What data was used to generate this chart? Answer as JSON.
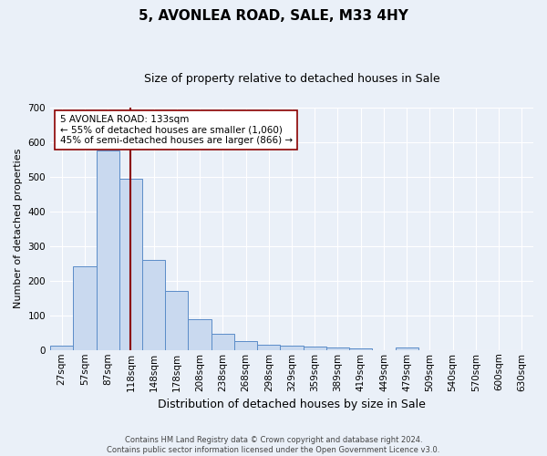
{
  "title": "5, AVONLEA ROAD, SALE, M33 4HY",
  "subtitle": "Size of property relative to detached houses in Sale",
  "xlabel": "Distribution of detached houses by size in Sale",
  "ylabel": "Number of detached properties",
  "bar_labels": [
    "27sqm",
    "57sqm",
    "87sqm",
    "118sqm",
    "148sqm",
    "178sqm",
    "208sqm",
    "238sqm",
    "268sqm",
    "298sqm",
    "329sqm",
    "359sqm",
    "389sqm",
    "419sqm",
    "449sqm",
    "479sqm",
    "509sqm",
    "540sqm",
    "570sqm",
    "600sqm",
    "630sqm"
  ],
  "bar_values": [
    12,
    242,
    575,
    493,
    260,
    170,
    90,
    47,
    25,
    14,
    12,
    10,
    7,
    5,
    0,
    8,
    0,
    0,
    0,
    0,
    0
  ],
  "bar_color": "#c9d9ef",
  "bar_edge_color": "#5b8cc8",
  "ylim": [
    0,
    700
  ],
  "yticks": [
    0,
    100,
    200,
    300,
    400,
    500,
    600,
    700
  ],
  "vline_color": "#8b0000",
  "prop_size_sqm": 133,
  "bin_edges": [
    27,
    57,
    87,
    118,
    148,
    178,
    208,
    238,
    268,
    298,
    329,
    359,
    389,
    419,
    449,
    479,
    509,
    540,
    570,
    600,
    630,
    660
  ],
  "annotation_text": "5 AVONLEA ROAD: 133sqm\n← 55% of detached houses are smaller (1,060)\n45% of semi-detached houses are larger (866) →",
  "annotation_box_facecolor": "white",
  "annotation_box_edgecolor": "#8b0000",
  "footer": "Contains HM Land Registry data © Crown copyright and database right 2024.\nContains public sector information licensed under the Open Government Licence v3.0.",
  "bg_color": "#eaf0f8",
  "grid_color": "white",
  "title_fontsize": 11,
  "subtitle_fontsize": 9,
  "xlabel_fontsize": 9,
  "ylabel_fontsize": 8,
  "tick_fontsize": 7.5,
  "annotation_fontsize": 7.5,
  "footer_fontsize": 6
}
